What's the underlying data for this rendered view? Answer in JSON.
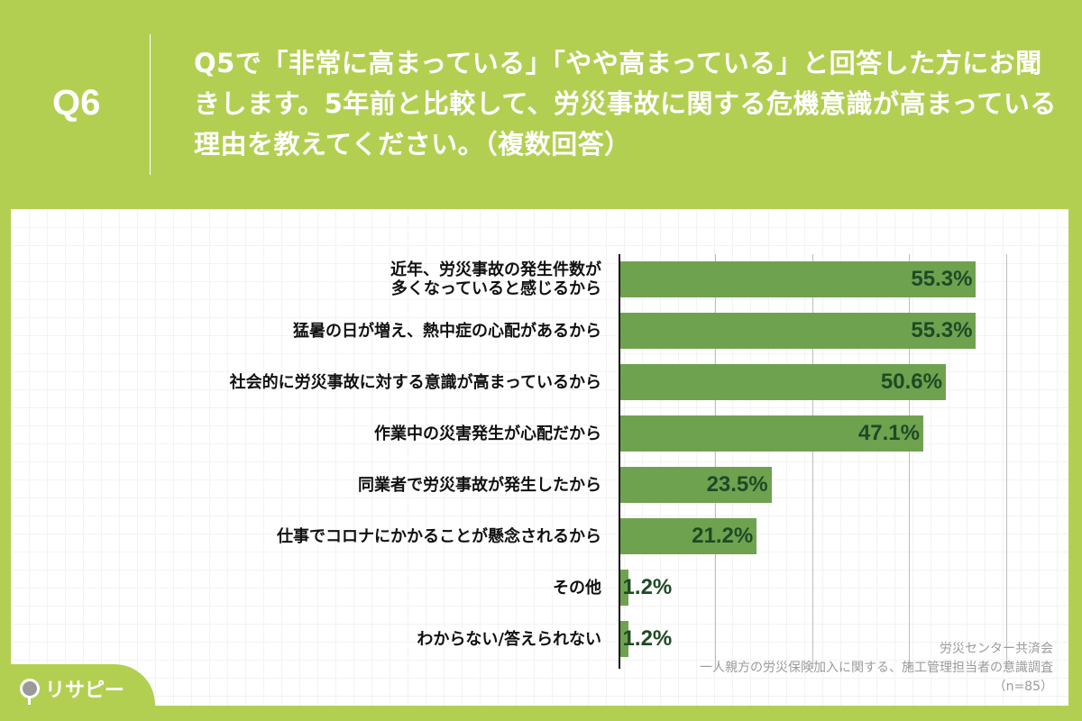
{
  "header": {
    "question_number": "Q6",
    "question_text": "Q5で「非常に高まっている」「やや高まっている」と回答した方にお聞きします。5年前と比較して、労災事故に関する危機意識が高まっている理由を教えてください。（複数回答）"
  },
  "source": {
    "line1": "労災センター共済会",
    "line2": "一人親方の労災保険加入に関する、施工管理担当者の意識調査",
    "line3": "（n=85）"
  },
  "logo": {
    "text": "リサピー",
    "icon": "pin-chart-icon"
  },
  "colors": {
    "background": "#b3cf52",
    "bar": "#6fa24f",
    "value_text": "#1f4a26"
  },
  "chart_data": {
    "type": "bar",
    "orientation": "horizontal",
    "title": "Q5で「非常に高まっている」「やや高まっている」と回答した方にお聞きします。5年前と比較して、労災事故に関する危機意識が高まっている理由を教えてください。（複数回答）",
    "categories": [
      "近年、労災事故の発生件数が多くなっていると感じるから",
      "猛暑の日が増え、熱中症の心配があるから",
      "社会的に労災事故に対する意識が高まっているから",
      "作業中の災害発生が心配だから",
      "同業者で労災事故が発生したから",
      "仕事でコロナにかかることが懸念されるから",
      "その他",
      "わからない/答えられない"
    ],
    "values": [
      55.3,
      55.3,
      50.6,
      47.1,
      23.5,
      21.2,
      1.2,
      1.2
    ],
    "value_labels": [
      "55.3%",
      "55.3%",
      "50.6%",
      "47.1%",
      "23.5%",
      "21.2%",
      "1.2%",
      "1.2%"
    ],
    "unit": "%",
    "xlim": [
      0,
      60
    ],
    "grid": true,
    "gridlines_at": [
      15,
      30,
      45,
      60
    ],
    "n": 85
  },
  "labels": {
    "r0a": "近年、労災事故の発生件数が",
    "r0b": "多くなっていると感じるから",
    "r1": "猛暑の日が増え、熱中症の心配があるから",
    "r2": "社会的に労災事故に対する意識が高まっているから",
    "r3": "作業中の災害発生が心配だから",
    "r4": "同業者で労災事故が発生したから",
    "r5": "仕事でコロナにかかることが懸念されるから",
    "r6": "その他",
    "r7": "わからない/答えられない"
  }
}
